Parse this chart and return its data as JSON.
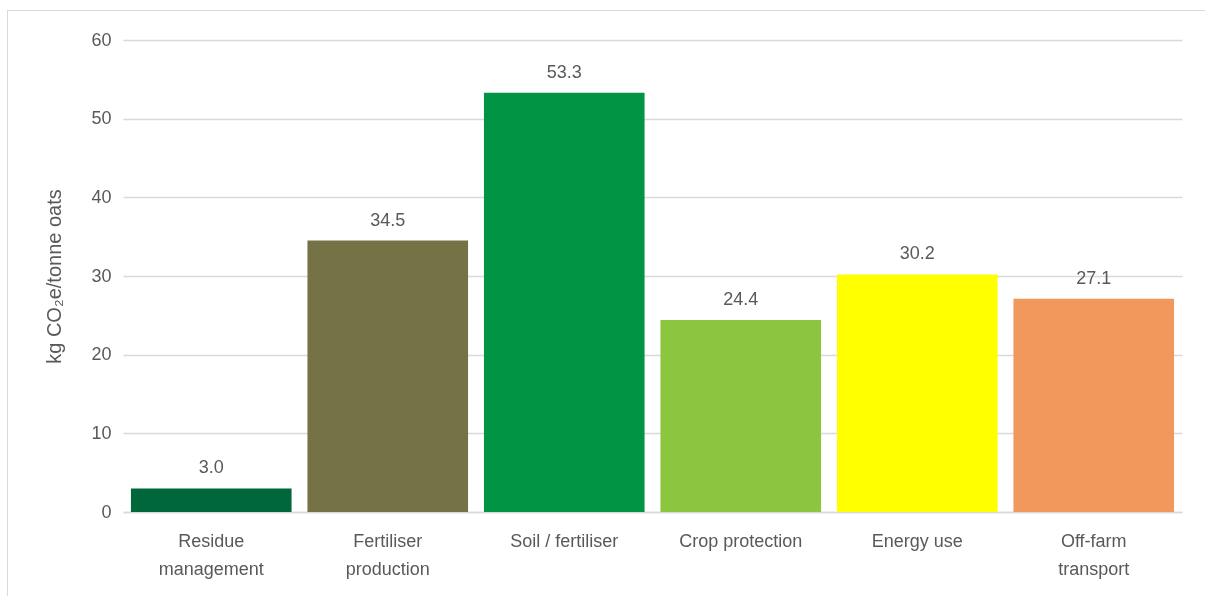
{
  "chart_data": {
    "type": "bar",
    "ylabel": "kg CO₂e/tonne oats",
    "categories": [
      "Residue management",
      "Fertiliser production",
      "Soil / fertiliser",
      "Crop protection",
      "Energy use",
      "Off-farm transport"
    ],
    "values": [
      3.0,
      34.5,
      53.3,
      24.4,
      30.2,
      27.1
    ],
    "colors": [
      "#00673a",
      "#757246",
      "#009444",
      "#8cc540",
      "#ffff00",
      "#f1995d"
    ],
    "value_labels": [
      "3.0",
      "34.5",
      "53.3",
      "24.4",
      "30.2",
      "27.1"
    ],
    "ylim": [
      0,
      60
    ],
    "yticks": [
      0,
      10,
      20,
      30,
      40,
      50,
      60
    ],
    "grid": "y"
  }
}
